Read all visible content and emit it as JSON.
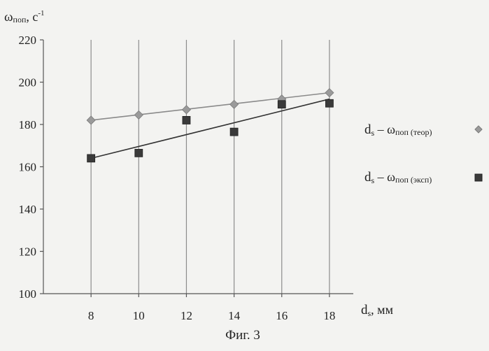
{
  "chart_data": {
    "type": "scatter",
    "ylabel_main": "ω",
    "ylabel_sub": "поп",
    "ylabel_unit": ", с",
    "ylabel_exp": "-1",
    "xlabel_main": "d",
    "xlabel_sub": "s",
    "xlabel_unit": ", мм",
    "caption": "Фиг. 3",
    "xlim": [
      6,
      19
    ],
    "ylim": [
      100,
      220
    ],
    "xticks": [
      8,
      10,
      12,
      14,
      16,
      18
    ],
    "yticks": [
      100,
      120,
      140,
      160,
      180,
      200,
      220
    ],
    "grid": "vertical",
    "legend_position": "right",
    "series": [
      {
        "name": "ds – ωпоп (теор)",
        "legend": {
          "d": "d",
          "s": "s",
          "dash": " – ω",
          "sub": "поп (теор)"
        },
        "marker": "diamond",
        "color": "#9a9a9a",
        "line_color": "#8a8a8a",
        "x": [
          8,
          10,
          12,
          14,
          16,
          18
        ],
        "y": [
          182,
          184.5,
          187,
          189.5,
          192,
          195
        ],
        "trend": [
          182,
          195
        ]
      },
      {
        "name": "ds – ωпоп (эксп)",
        "legend": {
          "d": "d",
          "s": "s",
          "dash": " – ω",
          "sub": "поп (эксп)"
        },
        "marker": "square",
        "color": "#3a3a3a",
        "line_color": "#333333",
        "x": [
          8,
          10,
          12,
          14,
          16,
          18
        ],
        "y": [
          164,
          166.5,
          182,
          176.5,
          189.5,
          190
        ],
        "trend": [
          164,
          192
        ]
      }
    ]
  }
}
